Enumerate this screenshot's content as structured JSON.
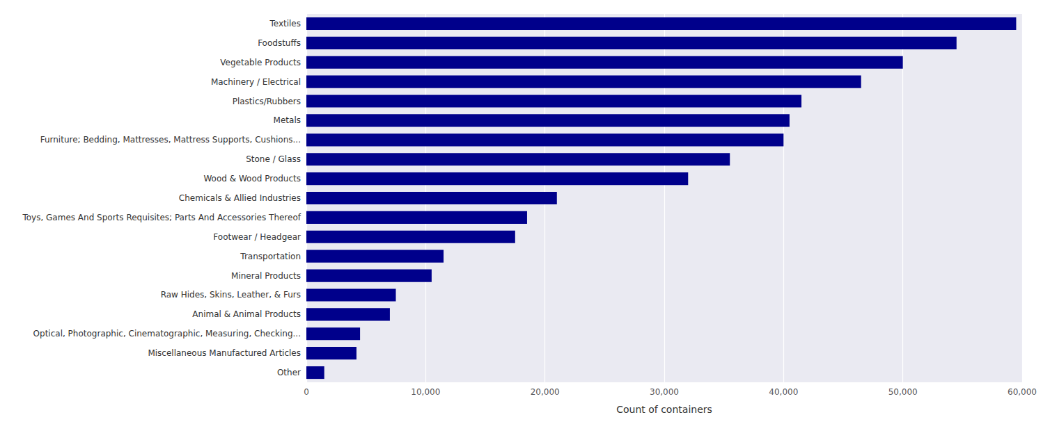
{
  "chart_data": {
    "type": "bar",
    "orientation": "horizontal",
    "xlabel": "Count of containers",
    "categories": [
      "Textiles",
      "Foodstuffs",
      "Vegetable Products",
      "Machinery / Electrical",
      "Plastics/Rubbers",
      "Metals",
      "Furniture; Bedding, Mattresses, Mattress Supports, Cushions...",
      "Stone / Glass",
      "Wood & Wood Products",
      "Chemicals & Allied Industries",
      "Toys, Games And Sports Requisites; Parts And Accessories Thereof",
      "Footwear / Headgear",
      "Transportation",
      "Mineral Products",
      "Raw Hides, Skins, Leather, & Furs",
      "Animal & Animal Products",
      "Optical, Photographic, Cinematographic, Measuring, Checking...",
      "Miscellaneous Manufactured Articles",
      "Other"
    ],
    "values": [
      59500,
      54500,
      50000,
      46500,
      41500,
      40500,
      40000,
      35500,
      32000,
      21000,
      18500,
      17500,
      11500,
      10500,
      7500,
      7000,
      4500,
      4200,
      1500
    ],
    "color": "#00008B",
    "xlim": [
      0,
      60000
    ],
    "xticks": [
      0,
      {
        "value": 10000,
        "label": "10,000"
      },
      {
        "value": 20000,
        "label": "20,000"
      },
      {
        "value": 30000,
        "label": "30,000"
      },
      {
        "value": 40000,
        "label": "40,000"
      },
      {
        "value": 50000,
        "label": "50,000"
      },
      {
        "value": 60000,
        "label": "60,000"
      }
    ],
    "grid": true
  }
}
